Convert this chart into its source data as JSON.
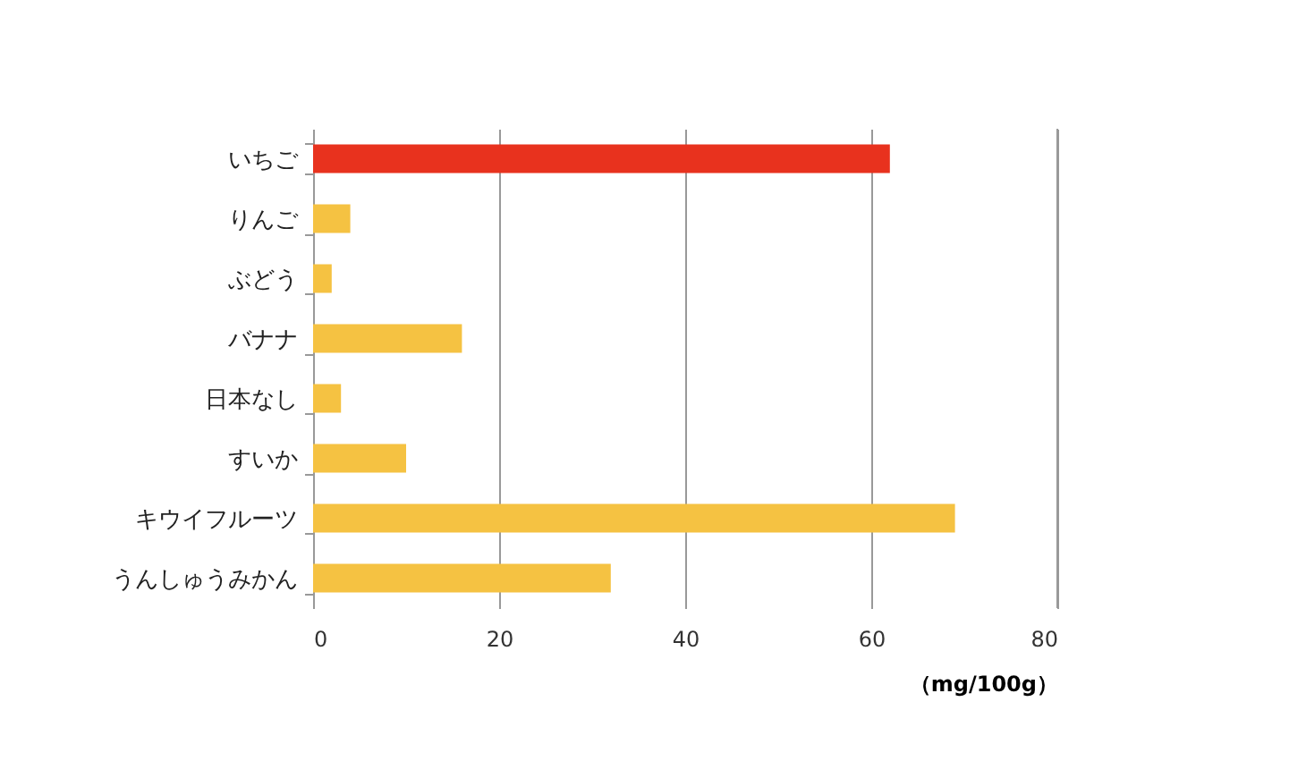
{
  "chart_data": {
    "type": "bar",
    "orientation": "horizontal",
    "categories": [
      "いちご",
      "りんご",
      "ぶどう",
      "バナナ",
      "日本なし",
      "すいか",
      "キウイフルーツ",
      "うんしゅうみかん"
    ],
    "values": [
      62,
      4,
      2,
      16,
      3,
      10,
      69,
      32
    ],
    "colors": [
      "#e8321e",
      "#f5c242",
      "#f5c242",
      "#f5c242",
      "#f5c242",
      "#f5c242",
      "#f5c242",
      "#f5c242"
    ],
    "xlabel": "（mg/100g）",
    "xlim": [
      0,
      80
    ],
    "xticks": [
      0,
      20,
      40,
      60,
      80
    ],
    "grid": "x"
  }
}
